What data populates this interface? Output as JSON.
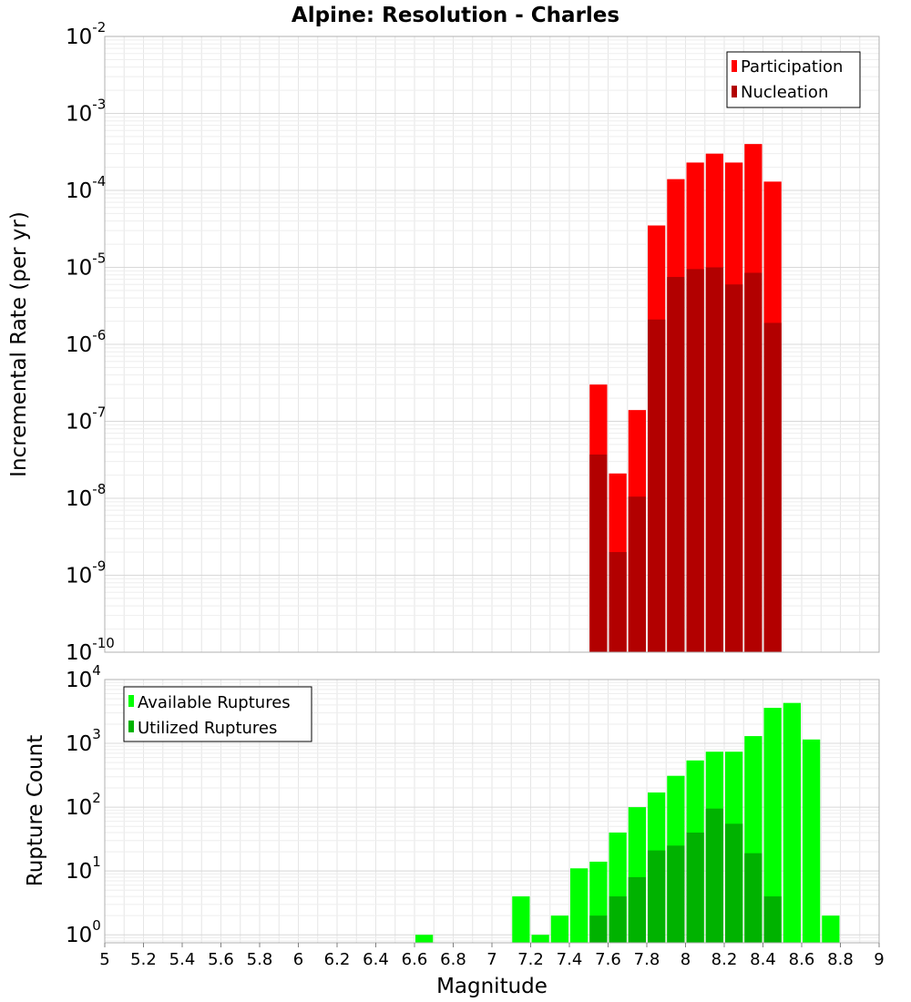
{
  "title": "Alpine: Resolution - Charles",
  "chart_data": [
    {
      "type": "bar",
      "name": "rate-panel",
      "ylabel": "Incremental Rate (per yr)",
      "yscale": "log",
      "ylim": [
        1e-10,
        0.01
      ],
      "xlim": [
        5,
        9
      ],
      "bin_width": 0.1,
      "grid": true,
      "legend_placement": "top-right",
      "y_tick_exponents": [
        "-10",
        "-9",
        "-8",
        "-7",
        "-6",
        "-5",
        "-4",
        "-3",
        "-2"
      ],
      "y_tick_base": "10",
      "series": [
        {
          "name": "Participation",
          "color": "#ff0000",
          "x": [
            7.55,
            7.65,
            7.75,
            7.85,
            7.95,
            8.05,
            8.15,
            8.25,
            8.35,
            8.45
          ],
          "values": [
            3e-07,
            2.1e-08,
            1.4e-07,
            3.5e-05,
            0.00014,
            0.00023,
            0.0003,
            0.00023,
            0.0004,
            0.00013
          ]
        },
        {
          "name": "Nucleation",
          "color": "#b20000",
          "x": [
            7.55,
            7.65,
            7.75,
            7.85,
            7.95,
            8.05,
            8.15,
            8.25,
            8.35,
            8.45
          ],
          "values": [
            3.7e-08,
            2e-09,
            1.05e-08,
            2.1e-06,
            7.5e-06,
            9.5e-06,
            1e-05,
            6e-06,
            8.5e-06,
            1.9e-06
          ]
        }
      ]
    },
    {
      "type": "bar",
      "name": "count-panel",
      "xlabel": "Magnitude",
      "ylabel": "Rupture Count",
      "yscale": "log",
      "ylim": [
        0.75,
        10000
      ],
      "xlim": [
        5,
        9
      ],
      "bin_width": 0.1,
      "grid": true,
      "legend_placement": "top-left",
      "y_tick_exponents": [
        "0",
        "1",
        "2",
        "3",
        "4"
      ],
      "y_tick_base": "10",
      "x_ticks": [
        "5",
        "5.2",
        "5.4",
        "5.6",
        "5.8",
        "6",
        "6.2",
        "6.4",
        "6.6",
        "6.8",
        "7",
        "7.2",
        "7.4",
        "7.6",
        "7.8",
        "8",
        "8.2",
        "8.4",
        "8.6",
        "8.8",
        "9"
      ],
      "series": [
        {
          "name": "Available Ruptures",
          "color": "#00ff00",
          "x": [
            6.65,
            7.15,
            7.25,
            7.35,
            7.45,
            7.55,
            7.65,
            7.75,
            7.85,
            7.95,
            8.05,
            8.15,
            8.25,
            8.35,
            8.45,
            8.55,
            8.65,
            8.75
          ],
          "values": [
            1,
            4,
            1,
            2,
            11,
            14,
            40,
            100,
            170,
            310,
            540,
            740,
            740,
            1300,
            3600,
            4300,
            1150,
            2
          ]
        },
        {
          "name": "Utilized Ruptures",
          "color": "#00b200",
          "x": [
            7.55,
            7.65,
            7.75,
            7.85,
            7.95,
            8.05,
            8.15,
            8.25,
            8.35,
            8.45
          ],
          "values": [
            2,
            4,
            8,
            21,
            25,
            40,
            95,
            55,
            19,
            4
          ]
        }
      ]
    }
  ]
}
